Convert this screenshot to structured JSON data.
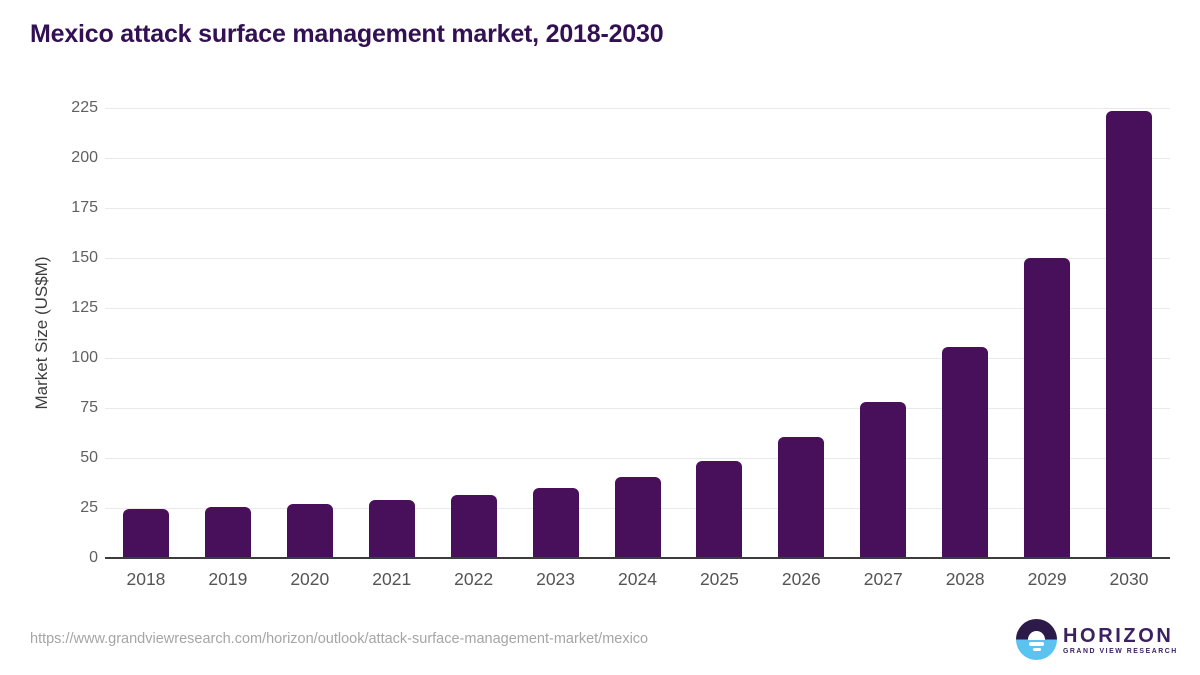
{
  "page": {
    "title": "Mexico attack surface management market, 2018-2030",
    "source_url": "https://www.grandviewresearch.com/horizon/outlook/attack-surface-management-market/mexico"
  },
  "chart_data": {
    "type": "bar",
    "title": "Mexico attack surface management market, 2018-2030",
    "categories": [
      "2018",
      "2019",
      "2020",
      "2021",
      "2022",
      "2023",
      "2024",
      "2025",
      "2026",
      "2027",
      "2028",
      "2029",
      "2030"
    ],
    "values": [
      24.5,
      25.6,
      27.0,
      28.8,
      31.6,
      35.0,
      40.5,
      48.6,
      60.7,
      78.2,
      105.5,
      149.8,
      223.6
    ],
    "xlabel": "",
    "ylabel": "Market Size (US$M)",
    "ylim": [
      0,
      225
    ],
    "yticks": [
      0,
      25,
      50,
      75,
      100,
      125,
      150,
      175,
      200,
      225
    ],
    "grid": "horizontal",
    "legend_position": "none",
    "bar_color": "#48105a"
  },
  "branding": {
    "logo_name": "HORIZON",
    "logo_subtext": "GRAND VIEW RESEARCH",
    "wordmark_color": "#3b2162",
    "circle_top_color": "#2c1a49",
    "circle_bottom_color": "#5cc3f0"
  },
  "colors": {
    "title": "#331053",
    "bar": "#48105a",
    "gridline": "#e9e9e9",
    "axis_line": "#3c3c3c",
    "tick_text": "#606060",
    "url_text": "#a5a5a5",
    "background": "#ffffff"
  }
}
